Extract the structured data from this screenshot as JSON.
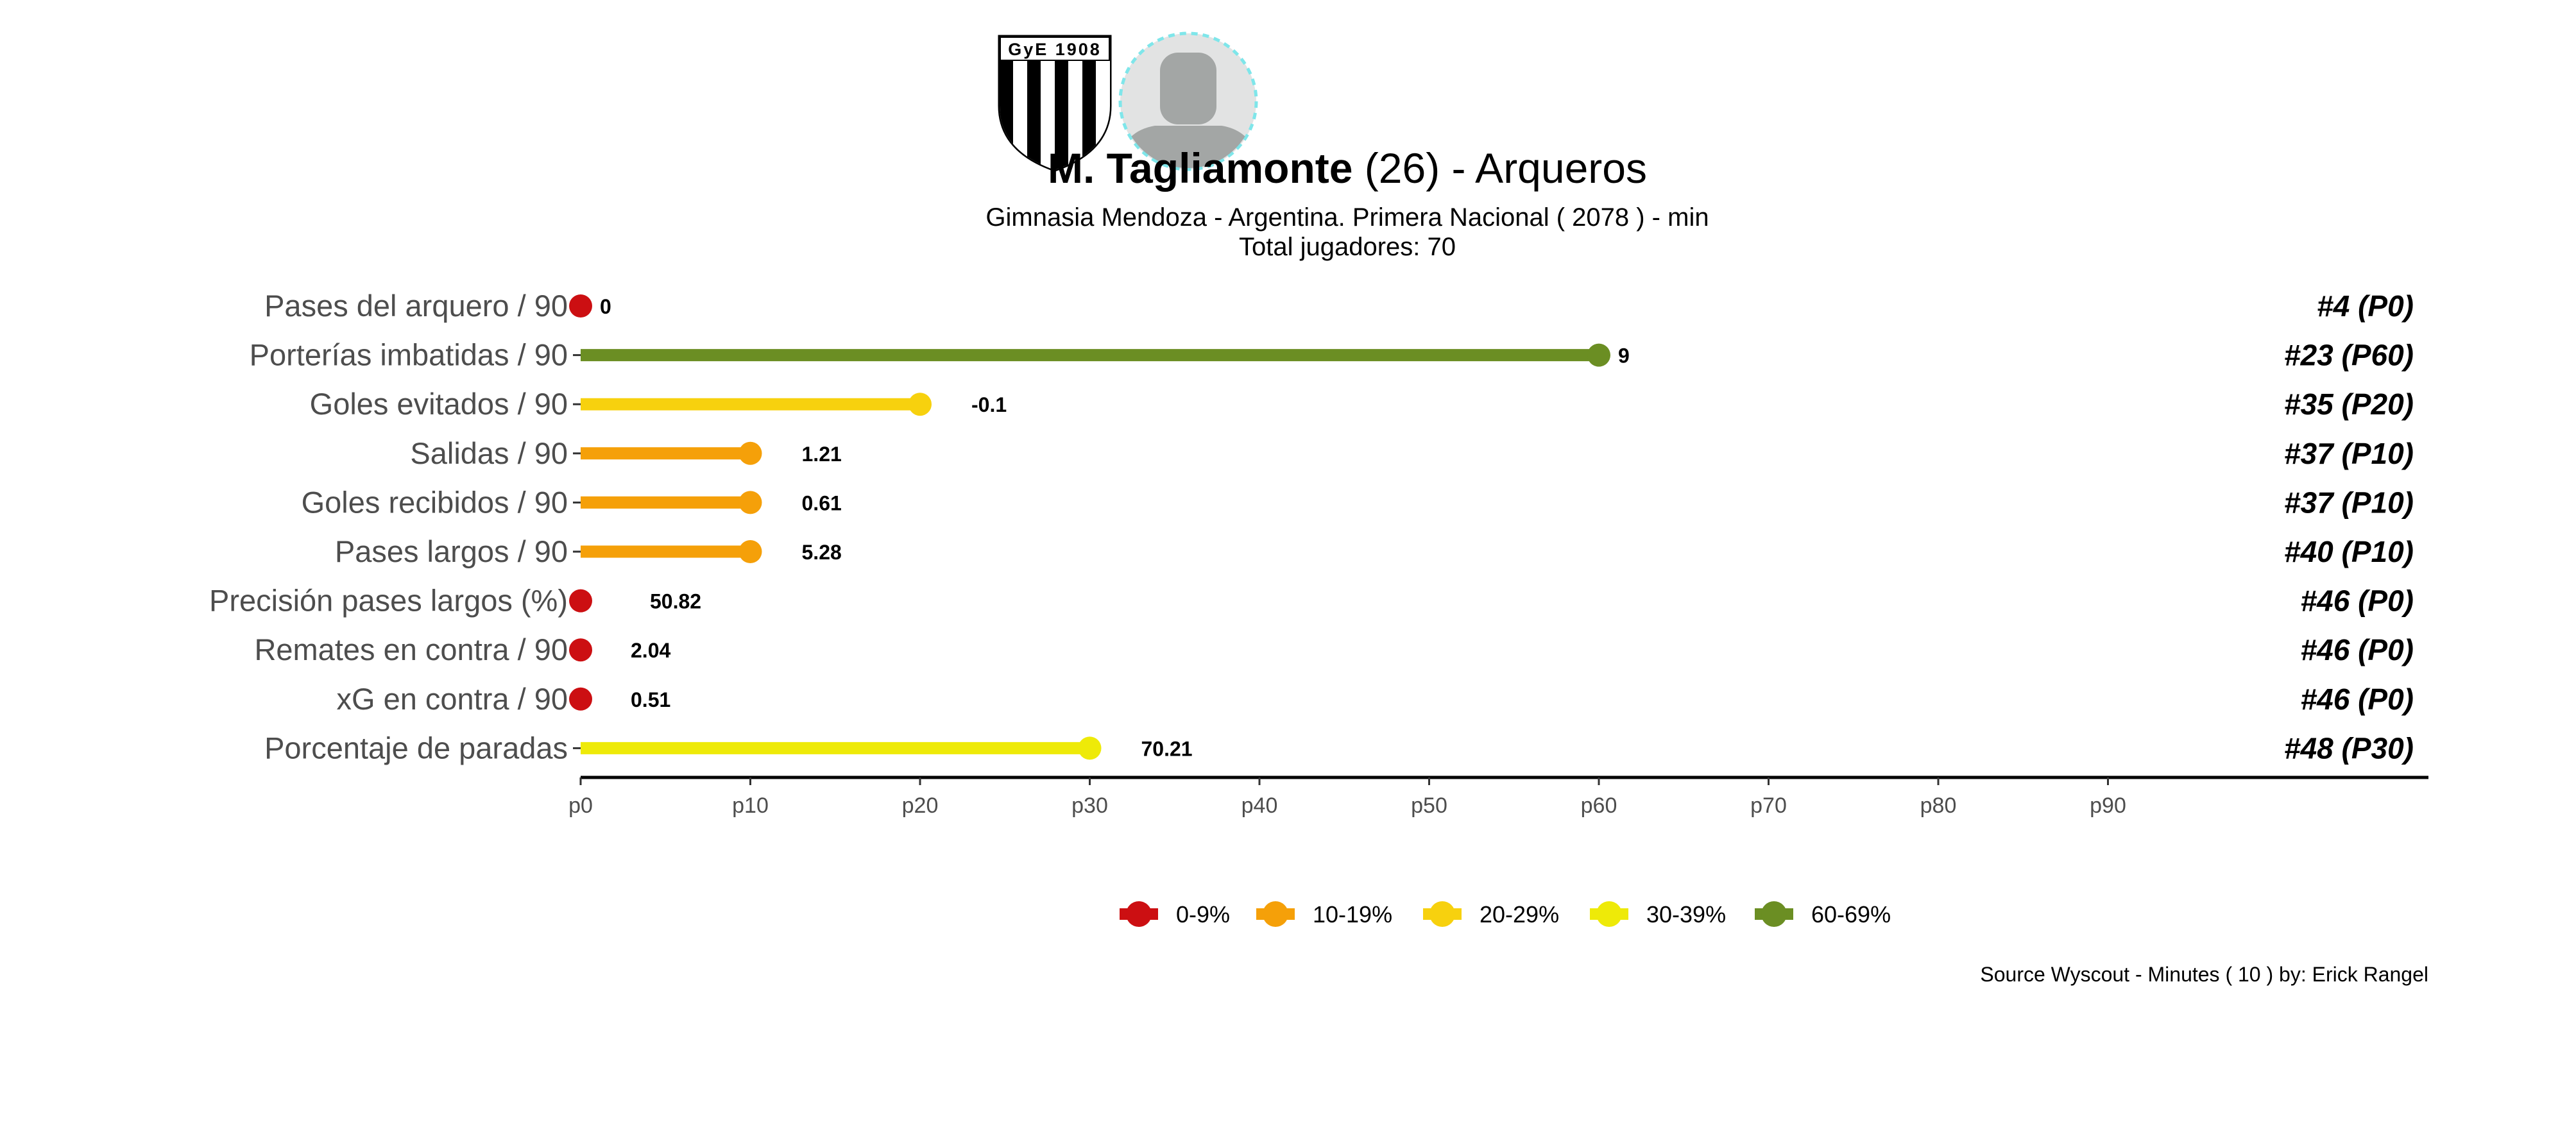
{
  "header": {
    "player_name": "M. Tagliamonte",
    "title_rest": " (26) -  Arqueros",
    "subtitle": "Gimnasia Mendoza  -  Argentina. Primera Nacional  ( 2078 ) - min",
    "total_players": "Total jugadores:  70",
    "club_shield_text": "GyE 1908"
  },
  "caption": "Source Wyscout - Minutes ( 10 ) by: Erick Rangel",
  "colors": {
    "0-9%": "#cc0f12",
    "10-19%": "#f5a009",
    "20-29%": "#f7d10e",
    "30-39%": "#eeea08",
    "60-69%": "#6b8e23",
    "axis": "#000000",
    "label": "#4d4d4d"
  },
  "chart_data": {
    "type": "lollipop",
    "x_axis": {
      "ticks": [
        "p0",
        "p10",
        "p20",
        "p30",
        "p40",
        "p50",
        "p60",
        "p70",
        "p80",
        "p90"
      ],
      "tick_values": [
        0,
        10,
        20,
        30,
        40,
        50,
        60,
        70,
        80,
        90
      ]
    },
    "rows": [
      {
        "metric": "Pases del arquero / 90",
        "percentile": 0,
        "value": "0",
        "rank": "#4 (P0)",
        "bucket": "0-9%"
      },
      {
        "metric": "Porterías imbatidas / 90",
        "percentile": 60,
        "value": "9",
        "rank": "#23 (P60)",
        "bucket": "60-69%"
      },
      {
        "metric": "Goles evitados / 90",
        "percentile": 20,
        "value": "-0.1",
        "rank": "#35 (P20)",
        "bucket": "20-29%"
      },
      {
        "metric": "Salidas / 90",
        "percentile": 10,
        "value": "1.21",
        "rank": "#37 (P10)",
        "bucket": "10-19%"
      },
      {
        "metric": "Goles recibidos / 90",
        "percentile": 10,
        "value": "0.61",
        "rank": "#37 (P10)",
        "bucket": "10-19%"
      },
      {
        "metric": "Pases largos / 90",
        "percentile": 10,
        "value": "5.28",
        "rank": "#40 (P10)",
        "bucket": "10-19%"
      },
      {
        "metric": "Precisión pases largos (%)",
        "percentile": 0,
        "value": "50.82",
        "rank": "#46 (P0)",
        "bucket": "0-9%"
      },
      {
        "metric": "Remates en contra / 90",
        "percentile": 0,
        "value": "2.04",
        "rank": "#46 (P0)",
        "bucket": "0-9%"
      },
      {
        "metric": "xG en contra / 90",
        "percentile": 0,
        "value": "0.51",
        "rank": "#46 (P0)",
        "bucket": "0-9%"
      },
      {
        "metric": "Porcentaje de paradas",
        "percentile": 30,
        "value": "70.21",
        "rank": "#48 (P30)",
        "bucket": "30-39%"
      }
    ],
    "legend": {
      "placement": "bottom",
      "entries": [
        "0-9%",
        "10-19%",
        "20-29%",
        "30-39%",
        "60-69%"
      ]
    }
  }
}
